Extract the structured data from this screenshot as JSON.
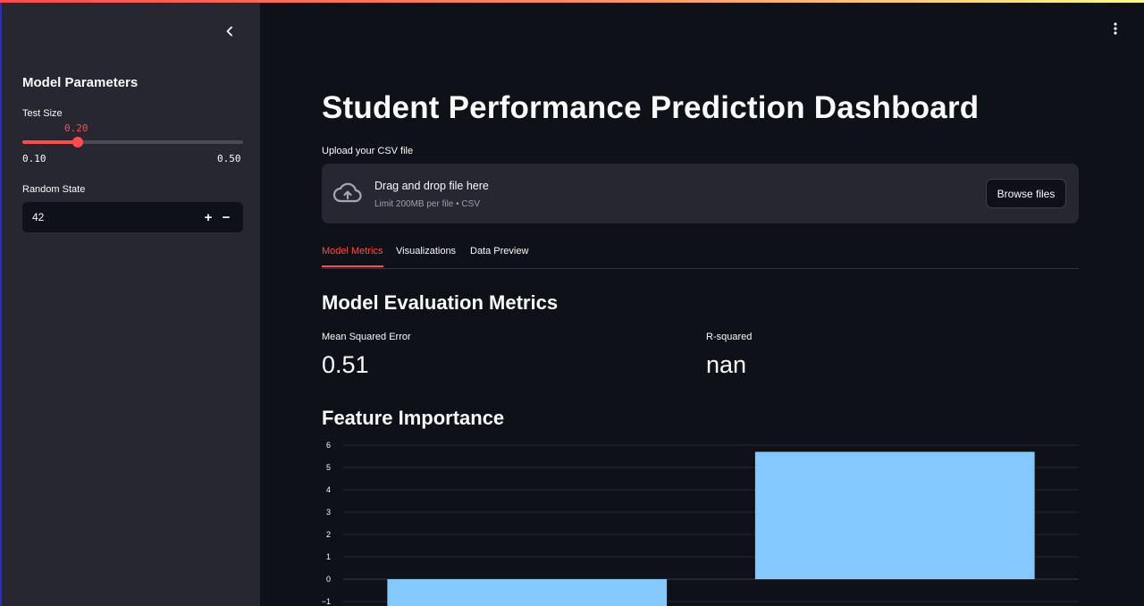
{
  "sidebar": {
    "title": "Model Parameters",
    "test_size": {
      "label": "Test Size",
      "value": "0.20",
      "min": "0.10",
      "max": "0.50",
      "fraction": 0.25
    },
    "random_state": {
      "label": "Random State",
      "value": "42",
      "minus": "−",
      "plus": "+"
    }
  },
  "main": {
    "title": "Student Performance Prediction Dashboard",
    "upload": {
      "label": "Upload your CSV file",
      "drag_text": "Drag and drop file here",
      "limit_text": "Limit 200MB per file • CSV",
      "browse_label": "Browse files"
    },
    "tabs": [
      {
        "label": "Model Metrics",
        "active": true
      },
      {
        "label": "Visualizations",
        "active": false
      },
      {
        "label": "Data Preview",
        "active": false
      }
    ],
    "metrics_heading": "Model Evaluation Metrics",
    "metrics": [
      {
        "label": "Mean Squared Error",
        "value": "0.51"
      },
      {
        "label": "R-squared",
        "value": "nan"
      }
    ],
    "feature_heading": "Feature Importance"
  },
  "icons": {
    "collapse": "chevron-left-icon",
    "menu": "vertical-ellipsis-icon",
    "upload": "cloud-upload-icon"
  },
  "colors": {
    "accent": "#ff4b4b",
    "background": "#0e1117",
    "sidebar": "#262730",
    "bar": "#83c9ff"
  },
  "chart_data": {
    "type": "bar",
    "categories": [
      "",
      ""
    ],
    "values": [
      -1.3,
      5.7
    ],
    "yticks": [
      6,
      5,
      4,
      3,
      2,
      1,
      0,
      -1
    ],
    "ytick_labels": [
      "6",
      "5",
      "4",
      "3",
      "2",
      "1",
      "0",
      "−1"
    ],
    "ylim": [
      -1.2,
      6.1
    ],
    "grid": true,
    "title": "",
    "xlabel": "",
    "ylabel": ""
  }
}
